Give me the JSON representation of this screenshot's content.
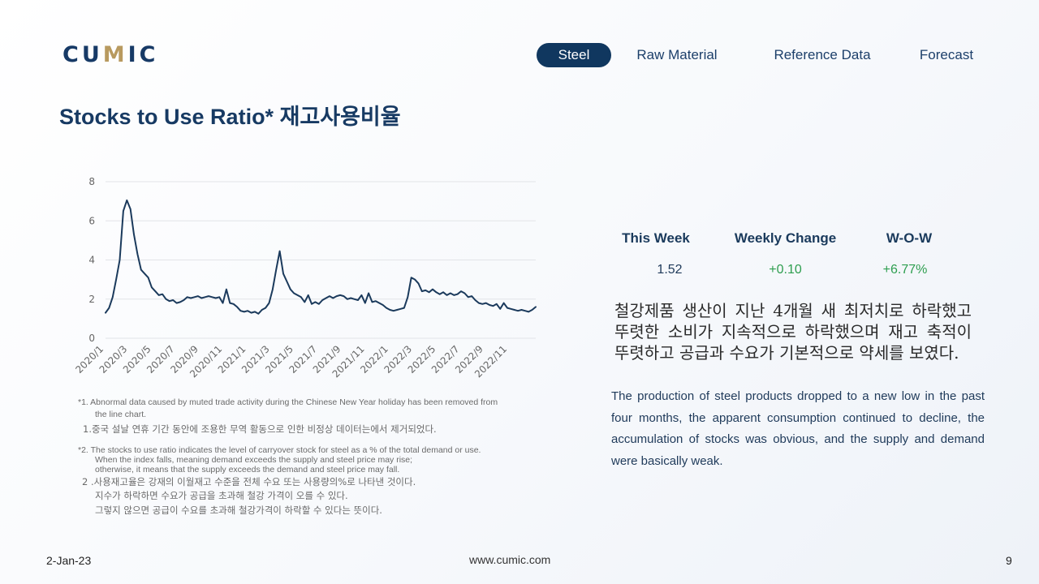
{
  "logo": {
    "brand": "CUMIC"
  },
  "nav": {
    "items": [
      "Steel",
      "Raw Material",
      "Reference Data",
      "Forecast"
    ],
    "active": "Steel"
  },
  "page_title": "Stocks to Use Ratio* 재고사용비율",
  "chart_data": {
    "type": "line",
    "title": "",
    "xlabel": "",
    "ylabel": "",
    "ylim": [
      0,
      8
    ],
    "yticks": [
      0,
      2,
      4,
      6,
      8
    ],
    "grid": true,
    "legend": "none",
    "line_color": "#1b3a5c",
    "xtick_labels": [
      "2020/1",
      "2020/3",
      "2020/5",
      "2020/7",
      "2020/9",
      "2020/11",
      "2021/1",
      "2021/3",
      "2021/5",
      "2021/7",
      "2021/9",
      "2021/11",
      "2022/1",
      "2022/3",
      "2022/5",
      "2022/7",
      "2022/9",
      "2022/11"
    ],
    "series": [
      {
        "values": [
          1.3,
          1.55,
          2.1,
          3.0,
          4.0,
          6.5,
          7.05,
          6.6,
          5.3,
          4.3,
          3.5,
          3.3,
          3.1,
          2.6,
          2.4,
          2.2,
          2.25,
          2.0,
          1.9,
          1.95,
          1.8,
          1.85,
          1.95,
          2.1,
          2.05,
          2.1,
          2.15,
          2.05,
          2.1,
          2.15,
          2.1,
          2.05,
          2.1,
          1.8,
          2.5,
          1.8,
          1.75,
          1.6,
          1.4,
          1.35,
          1.4,
          1.3,
          1.35,
          1.25,
          1.45,
          1.55,
          1.8,
          2.5,
          3.5,
          4.45,
          3.3,
          2.9,
          2.5,
          2.3,
          2.2,
          2.1,
          1.85,
          2.2,
          1.75,
          1.85,
          1.75,
          1.95,
          2.05,
          2.15,
          2.05,
          2.15,
          2.2,
          2.15,
          2.0,
          2.05,
          2.0,
          1.95,
          2.2,
          1.8,
          2.3,
          1.85,
          1.9,
          1.8,
          1.7,
          1.55,
          1.45,
          1.4,
          1.45,
          1.5,
          1.55,
          2.1,
          3.1,
          3.0,
          2.8,
          2.4,
          2.45,
          2.35,
          2.5,
          2.35,
          2.25,
          2.35,
          2.2,
          2.3,
          2.2,
          2.25,
          2.4,
          2.3,
          2.1,
          2.15,
          1.95,
          1.8,
          1.75,
          1.8,
          1.7,
          1.65,
          1.75,
          1.5,
          1.8,
          1.55,
          1.5,
          1.45,
          1.4,
          1.45,
          1.4,
          1.35,
          1.45,
          1.6
        ]
      }
    ]
  },
  "footnotes": {
    "n1_en_a": "*1. Abnormal data caused by muted trade activity during the Chinese New Year holiday has been removed from",
    "n1_en_b": "the line chart.",
    "n1_ko": "1.중국 설날 연휴 기간 동안에 조용한 무역 활동으로 인한 비정상 데이터는에서 제거되었다.",
    "n2_en_a": "*2. The stocks to use ratio indicates the level of carryover stock for steel as a % of the total demand or use.",
    "n2_en_b": "When the index falls, meaning demand exceeds the supply and steel price may rise;",
    "n2_en_c": "otherwise, it means that the supply exceeds the demand and steel price may fall.",
    "n2_ko_a": "2 .사용재고율은 강재의 이월재고 수준을 전체 수요 또는 사용량의%로 나타낸 것이다.",
    "n2_ko_b": "지수가 하락하면 수요가 공급을 초과해 철강 가격이 오를 수 있다.",
    "n2_ko_c": "그렇지 않으면 공급이 수요를 초과해 철강가격이 하락할 수 있다는 뜻이다."
  },
  "stats": {
    "this_week_label": "This Week",
    "weekly_change_label": "Weekly Change",
    "wow_label": "W-O-W",
    "this_week_value": "1.52",
    "weekly_change_value": "+0.10",
    "wow_value": "+6.77%",
    "value_color_positive": "#2e9e4f"
  },
  "commentary": {
    "korean": "철강제품 생산이 지난 4개월 새 최저치로 하락했고 뚜렷한 소비가 지속적으로 하락했으며 재고 축적이 뚜렷하고 공급과 수요가 기본적으로 약세를 보였다.",
    "english": "The production of steel products dropped to a new low in the past four months, the apparent consumption continued to decline, the accumulation of stocks was obvious, and the supply and demand were basically weak."
  },
  "footer": {
    "date": "2-Jan-23",
    "url": "www.cumic.com",
    "page": "9"
  }
}
